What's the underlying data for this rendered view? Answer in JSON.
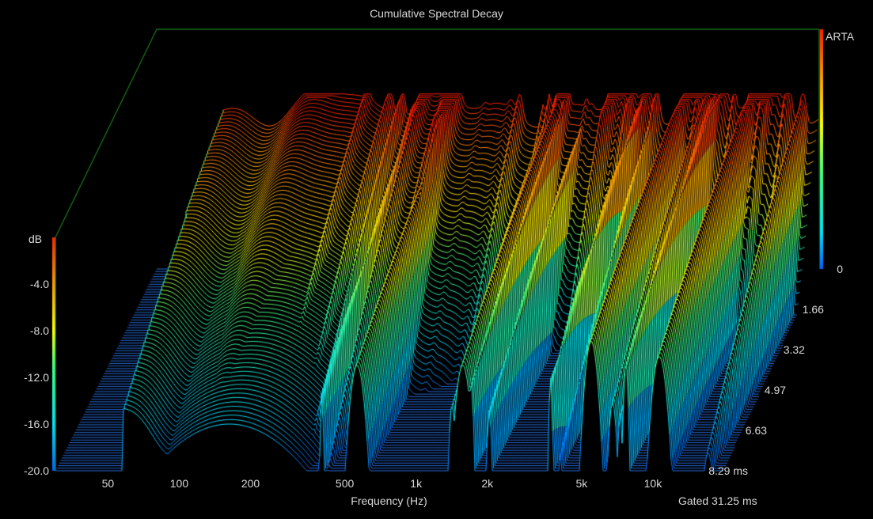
{
  "chart_data": {
    "type": "waterfall",
    "title": "Cumulative Spectral Decay",
    "xlabel": "Frequency (Hz)",
    "brand": "ARTA",
    "gate_label": "Gated 31.25 ms",
    "x_axis": {
      "scale": "log",
      "range_hz": [
        30,
        20000
      ],
      "ticks": [
        {
          "label": "50",
          "value": 50
        },
        {
          "label": "100",
          "value": 100
        },
        {
          "label": "200",
          "value": 200
        },
        {
          "label": "500",
          "value": 500
        },
        {
          "label": "1k",
          "value": 1000
        },
        {
          "label": "2k",
          "value": 2000
        },
        {
          "label": "5k",
          "value": 5000
        },
        {
          "label": "10k",
          "value": 10000
        }
      ]
    },
    "z_axis": {
      "unit": "dB",
      "range": [
        -20,
        0
      ],
      "ticks": [
        "-4.0",
        "-8.0",
        "-12.0",
        "-16.0",
        "-20.0"
      ]
    },
    "time_axis": {
      "range_ms": [
        0,
        8.29
      ],
      "ticks": [
        {
          "label": "0",
          "value": 0
        },
        {
          "label": "1.66",
          "value": 1.66
        },
        {
          "label": "3.32",
          "value": 3.32
        },
        {
          "label": "4.97",
          "value": 4.97
        },
        {
          "label": "6.63",
          "value": 6.63
        },
        {
          "label": "8.29 ms",
          "value": 8.29
        }
      ]
    },
    "slice_count": 80,
    "base_color": "#2a6fe0",
    "colormap": [
      "#00e0ff",
      "#40ff80",
      "#ffff00",
      "#ff9900",
      "#ff2000"
    ]
  }
}
